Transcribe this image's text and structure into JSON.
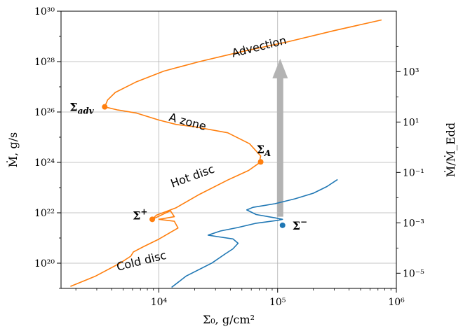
{
  "chart_data": {
    "type": "line",
    "xlabel": "Σ₀, g/cm²",
    "ylabel": "Ṁ, g/s",
    "ylabel_right": "Ṁ/Ṁ_Edd",
    "xscale": "log",
    "yscale": "log",
    "xlim": [
      1500,
      1000000
    ],
    "ylim": [
      1e+19,
      1e+30
    ],
    "grid": true,
    "x_ticks": [
      {
        "value": 10000,
        "label": "10⁴"
      },
      {
        "value": 100000,
        "label": "10⁵"
      },
      {
        "value": 1000000,
        "label": "10⁶"
      }
    ],
    "y_ticks": [
      {
        "value": 1e+20,
        "label": "10²⁰"
      },
      {
        "value": 1e+22,
        "label": "10²²"
      },
      {
        "value": 1e+24,
        "label": "10²⁴"
      },
      {
        "value": 1e+26,
        "label": "10²⁶"
      },
      {
        "value": 1e+28,
        "label": "10²⁸"
      },
      {
        "value": 1e+30,
        "label": "10³⁰"
      }
    ],
    "y_right_ticks": [
      {
        "value": 4e+19,
        "label": "10⁻⁵"
      },
      {
        "value": 4e+21,
        "label": "10⁻³"
      },
      {
        "value": 4e+23,
        "label": "10⁻¹"
      },
      {
        "value": 4e+25,
        "label": "10¹"
      },
      {
        "value": 4e+27,
        "label": "10³"
      }
    ],
    "series": [
      {
        "color": "#ff7f0e",
        "points": [
          [
            1800,
            1.2e+19
          ],
          [
            2900,
            3e+19
          ],
          [
            4700,
            1e+20
          ],
          [
            5800,
            1.9e+20
          ],
          [
            6100,
            2.8e+20
          ],
          [
            7400,
            4.5e+20
          ],
          [
            10000,
            9e+20
          ],
          [
            14500,
            2.5e+21
          ],
          [
            13500,
            4.6e+21
          ],
          [
            10000,
            5.5e+21
          ],
          [
            13500,
            7e+21
          ],
          [
            12500,
            1.2e+22
          ],
          [
            8800,
            5.5e+21
          ],
          [
            9500,
            8e+21
          ],
          [
            14000,
            1.6e+22
          ],
          [
            22000,
            5.4e+22
          ],
          [
            38000,
            2e+23
          ],
          [
            57000,
            4.8e+23
          ],
          [
            70000,
            9.5e+23
          ],
          [
            72000,
            1.8e+24
          ],
          [
            58000,
            5.5e+24
          ],
          [
            38000,
            1.5e+25
          ],
          [
            20000,
            2.6e+25
          ],
          [
            14000,
            3.2e+25
          ],
          [
            10000,
            4.8e+25
          ],
          [
            6500,
            9e+25
          ],
          [
            4500,
            1.2e+26
          ],
          [
            3500,
            1.6e+26
          ],
          [
            3700,
            3e+26
          ],
          [
            4300,
            6e+26
          ],
          [
            6500,
            1.6e+27
          ],
          [
            11000,
            4.2e+27
          ],
          [
            22000,
            1e+28
          ],
          [
            50000,
            2.5e+28
          ],
          [
            120000,
            6e+28
          ],
          [
            300000,
            1.7e+29
          ],
          [
            750000,
            4.5e+29
          ]
        ]
      },
      {
        "color": "#1f77b4",
        "points": [
          [
            12800,
            1.1e+19
          ],
          [
            17000,
            3.1e+19
          ],
          [
            28000,
            1.02e+20
          ],
          [
            36000,
            2.3e+20
          ],
          [
            42000,
            3.7e+20
          ],
          [
            46500,
            6.2e+20
          ],
          [
            42000,
            9.2e+20
          ],
          [
            32500,
            1.1e+21
          ],
          [
            26000,
            1.3e+21
          ],
          [
            33000,
            1.9e+21
          ],
          [
            46000,
            2.6e+21
          ],
          [
            65000,
            3.8e+21
          ],
          [
            100000,
            5e+21
          ],
          [
            110000,
            5.5e+21
          ],
          [
            95000,
            6.3e+21
          ],
          [
            66000,
            8.5e+21
          ],
          [
            55000,
            1.3e+22
          ],
          [
            62000,
            1.65e+22
          ],
          [
            95000,
            2.3e+22
          ],
          [
            140000,
            3.6e+22
          ],
          [
            200000,
            6e+22
          ],
          [
            260000,
            1.1e+23
          ],
          [
            320000,
            2.1e+23
          ]
        ]
      }
    ],
    "points": [
      {
        "label": "Σ",
        "sub": "adv",
        "sup": "",
        "x": 3500,
        "y": 1.6e+26,
        "color": "#ff7f0e"
      },
      {
        "label": "Σ",
        "sub": "A",
        "sup": "",
        "x": 72000,
        "y": 1.05e+24,
        "color": "#ff7f0e"
      },
      {
        "label": "Σ",
        "sub": "",
        "sup": "+",
        "x": 8800,
        "y": 5.5e+21,
        "color": "#ff7f0e"
      },
      {
        "label": "Σ",
        "sub": "",
        "sup": "−",
        "x": 110000,
        "y": 3.2e+21,
        "color": "#1f77b4"
      }
    ],
    "annotations": [
      {
        "text": "Advection",
        "x": 42000,
        "y": 1.5e+28,
        "rotate": -14
      },
      {
        "text": "A zone",
        "x": 12000,
        "y": 4.6e+25,
        "rotate": 15
      },
      {
        "text": "Hot disc",
        "x": 13000,
        "y": 1e+23,
        "rotate": -20
      },
      {
        "text": "Cold disc",
        "x": 4500,
        "y": 5e+19,
        "rotate": -14
      }
    ],
    "arrow": {
      "x": 105000,
      "y_start": 7e+21,
      "y_end": 1.3e+28,
      "color": "#b3b3b3"
    }
  }
}
